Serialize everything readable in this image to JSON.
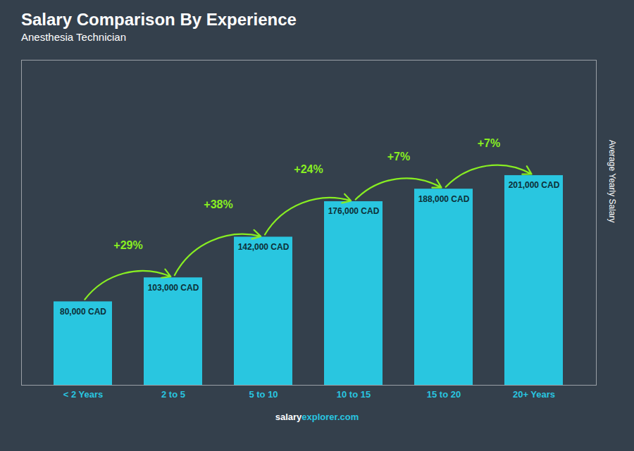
{
  "chart_data": {
    "type": "bar",
    "title": "Salary Comparison By Experience",
    "subtitle": "Anesthesia Technician",
    "categories": [
      "< 2 Years",
      "2 to 5",
      "5 to 10",
      "10 to 15",
      "15 to 20",
      "20+ Years"
    ],
    "values": [
      80000,
      103000,
      142000,
      176000,
      188000,
      201000
    ],
    "value_labels": [
      "80,000 CAD",
      "103,000 CAD",
      "142,000 CAD",
      "176,000 CAD",
      "188,000 CAD",
      "201,000 CAD"
    ],
    "data_labels": true,
    "color": "#29C6E0",
    "ylabel": "Average Yearly Salary",
    "ylim": [
      0,
      311550
    ],
    "yticks": [],
    "tick_labels": "x",
    "annotations": [
      {
        "text": "+29%",
        "color": "#88EE22"
      },
      {
        "text": "+38%",
        "color": "#88EE22"
      },
      {
        "text": "+24%",
        "color": "#88EE22"
      },
      {
        "text": "+7%",
        "color": "#88EE22"
      },
      {
        "text": "+7%",
        "color": "#88EE22"
      }
    ],
    "footer": [
      "salary",
      "explorer.com"
    ]
  }
}
